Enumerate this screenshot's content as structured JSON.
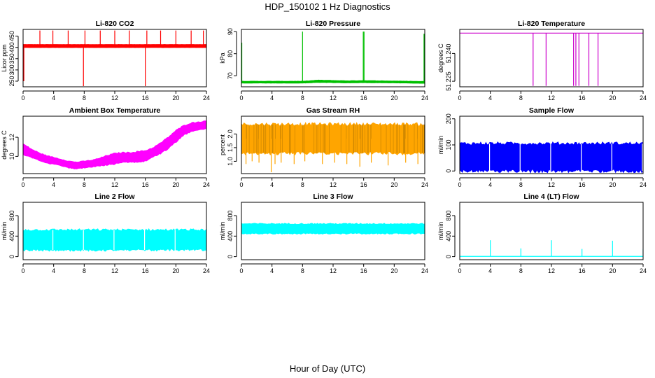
{
  "page": {
    "title": "HDP_150102  1 Hz Diagnostics",
    "xlabel": "Hour of Day (UTC)"
  },
  "chart_data": [
    {
      "type": "line",
      "title": "Li-820 CO2",
      "xlabel": "",
      "ylabel": "Licor ppm",
      "color": "#ff0000",
      "xlim": [
        0,
        24
      ],
      "ylim": [
        225,
        480
      ],
      "x_ticks": [
        0,
        4,
        8,
        12,
        16,
        20,
        24
      ],
      "y_ticks": [
        250,
        300,
        350,
        400,
        450
      ],
      "band": {
        "x": [
          0,
          24
        ],
        "low": [
          400,
          400
        ],
        "high": [
          412,
          412
        ]
      },
      "lines": [
        {
          "x": [
            0,
            24
          ],
          "y": [
            406,
            406
          ]
        }
      ],
      "spikes": [
        {
          "x": 0.1,
          "y": 250
        },
        {
          "x": 2.2,
          "y": 475
        },
        {
          "x": 3.9,
          "y": 475
        },
        {
          "x": 5.9,
          "y": 475
        },
        {
          "x": 7.9,
          "y": 228
        },
        {
          "x": 8.1,
          "y": 475
        },
        {
          "x": 10.1,
          "y": 475
        },
        {
          "x": 12.0,
          "y": 475
        },
        {
          "x": 13.9,
          "y": 475
        },
        {
          "x": 16.0,
          "y": 228
        },
        {
          "x": 16.2,
          "y": 475
        },
        {
          "x": 18.0,
          "y": 475
        },
        {
          "x": 20.0,
          "y": 475
        },
        {
          "x": 22.0,
          "y": 475
        },
        {
          "x": 23.6,
          "y": 475
        }
      ]
    },
    {
      "type": "line",
      "title": "Li-820 Pressure",
      "xlabel": "",
      "ylabel": "kPa",
      "color": "#00c000",
      "xlim": [
        0,
        24
      ],
      "ylim": [
        65,
        91
      ],
      "x_ticks": [
        0,
        4,
        8,
        12,
        16,
        20,
        24
      ],
      "y_ticks": [
        70,
        80,
        90
      ],
      "band": {
        "x": [
          0,
          8,
          10,
          14,
          16,
          20,
          24
        ],
        "low": [
          66.7,
          66.7,
          67.0,
          66.8,
          66.9,
          66.8,
          66.6
        ],
        "high": [
          67.5,
          67.5,
          68.0,
          67.7,
          67.8,
          67.6,
          67.4
        ]
      },
      "lines": [],
      "spikes": [
        {
          "x": 0.05,
          "y": 85
        },
        {
          "x": 8.0,
          "y": 90
        },
        {
          "x": 15.95,
          "y": 90
        },
        {
          "x": 16.05,
          "y": 90
        },
        {
          "x": 23.9,
          "y": 89
        }
      ]
    },
    {
      "type": "line",
      "title": "Li-820 Temperature",
      "xlabel": "",
      "ylabel": "degrees C",
      "color": "#cc00cc",
      "xlim": [
        0,
        24
      ],
      "ylim": [
        51.222,
        51.253
      ],
      "x_ticks": [
        0,
        4,
        8,
        12,
        16,
        20,
        24
      ],
      "y_ticks": [
        51.225,
        51.24
      ],
      "y_tick_labels": [
        "51.225",
        "51.240"
      ],
      "band": null,
      "lines": [
        {
          "x": [
            0,
            24
          ],
          "y": [
            51.251,
            51.251
          ]
        }
      ],
      "spikes": [
        {
          "x": 9.6,
          "y": 51.2225
        },
        {
          "x": 11.3,
          "y": 51.2225
        },
        {
          "x": 14.9,
          "y": 51.2225
        },
        {
          "x": 15.2,
          "y": 51.2225
        },
        {
          "x": 15.6,
          "y": 51.2225
        },
        {
          "x": 16.9,
          "y": 51.2225
        },
        {
          "x": 18.1,
          "y": 51.2225
        }
      ]
    },
    {
      "type": "line",
      "title": "Ambient Box Temperature",
      "xlabel": "",
      "ylabel": "degrees C",
      "color": "#ff00ff",
      "xlim": [
        0,
        24
      ],
      "ylim": [
        8.2,
        14.2
      ],
      "x_ticks": [
        0,
        4,
        8,
        12,
        16,
        20,
        24
      ],
      "y_ticks": [
        10,
        12
      ],
      "band": {
        "x": [
          0,
          1,
          2,
          3,
          4,
          5,
          6,
          7,
          8,
          9,
          10,
          11,
          12,
          13,
          14,
          15,
          16,
          17,
          18,
          19,
          20,
          21,
          22,
          23,
          24
        ],
        "low": [
          10.2,
          9.9,
          9.6,
          9.3,
          9.2,
          9.0,
          8.8,
          8.7,
          8.8,
          8.9,
          9.0,
          9.1,
          9.2,
          9.4,
          9.4,
          9.4,
          9.5,
          9.9,
          10.3,
          10.8,
          11.5,
          12.2,
          12.6,
          12.8,
          12.9
        ],
        "high": [
          11.3,
          10.8,
          10.4,
          10.1,
          9.9,
          9.7,
          9.5,
          9.4,
          9.5,
          9.6,
          9.8,
          10.1,
          10.3,
          10.4,
          10.4,
          10.5,
          10.6,
          10.9,
          11.4,
          12.0,
          12.7,
          13.2,
          13.5,
          13.6,
          13.7
        ]
      },
      "lines": [],
      "spikes": []
    },
    {
      "type": "line",
      "title": "Gas Stream RH",
      "xlabel": "",
      "ylabel": "percent",
      "color": "#ffa500",
      "accent": "#996600",
      "xlim": [
        0,
        24
      ],
      "ylim": [
        0.55,
        2.65
      ],
      "x_ticks": [
        0,
        4,
        8,
        12,
        16,
        20,
        24
      ],
      "y_ticks": [
        1.0,
        1.5,
        2.0
      ],
      "y_tick_labels": [
        "1.0",
        "1.5",
        "2.0"
      ],
      "band": {
        "x": [
          0,
          24
        ],
        "low": [
          1.3,
          1.3
        ],
        "high": [
          2.35,
          2.35
        ]
      },
      "lines": [],
      "spikes": [
        {
          "x": 0.6,
          "y": 0.9
        },
        {
          "x": 1.4,
          "y": 1.0
        },
        {
          "x": 2.3,
          "y": 0.95
        },
        {
          "x": 3.9,
          "y": 0.6
        },
        {
          "x": 4.4,
          "y": 0.9
        },
        {
          "x": 5.2,
          "y": 0.95
        },
        {
          "x": 6.9,
          "y": 0.9
        },
        {
          "x": 8.3,
          "y": 1.0
        },
        {
          "x": 10.6,
          "y": 0.9
        },
        {
          "x": 12.2,
          "y": 0.95
        },
        {
          "x": 13.8,
          "y": 0.9
        },
        {
          "x": 15.5,
          "y": 0.8
        },
        {
          "x": 17.0,
          "y": 0.95
        },
        {
          "x": 19.2,
          "y": 0.85
        },
        {
          "x": 21.5,
          "y": 0.95
        },
        {
          "x": 23.1,
          "y": 0.9
        }
      ]
    },
    {
      "type": "line",
      "title": "Sample Flow",
      "xlabel": "",
      "ylabel": "ml/min",
      "color": "#0000ff",
      "xlim": [
        0,
        24
      ],
      "ylim": [
        -10,
        210
      ],
      "x_ticks": [
        0,
        4,
        8,
        12,
        16,
        20,
        24
      ],
      "y_ticks": [
        0,
        100,
        200
      ],
      "band": {
        "x": [
          0,
          24
        ],
        "low": [
          0,
          0
        ],
        "high": [
          105,
          105
        ]
      },
      "lines": [],
      "gaps": [
        3.9,
        7.9,
        11.9,
        15.9,
        19.9,
        23.9
      ],
      "spikes": []
    },
    {
      "type": "line",
      "title": "Line 2 Flow",
      "xlabel": "",
      "ylabel": "ml/min",
      "color": "#00ffff",
      "xlim": [
        0,
        24
      ],
      "ylim": [
        -60,
        1060
      ],
      "x_ticks": [
        0,
        4,
        8,
        12,
        16,
        20,
        24
      ],
      "y_ticks": [
        0,
        400,
        800
      ],
      "band": {
        "x": [
          0,
          24
        ],
        "low": [
          130,
          130
        ],
        "high": [
          520,
          520
        ]
      },
      "lines": [],
      "gaps": [
        3.9,
        7.9,
        11.9,
        15.9,
        19.9
      ],
      "spikes": []
    },
    {
      "type": "line",
      "title": "Line 3 Flow",
      "xlabel": "",
      "ylabel": "ml/min",
      "color": "#00ffff",
      "xlim": [
        0,
        24
      ],
      "ylim": [
        -60,
        1060
      ],
      "x_ticks": [
        0,
        4,
        8,
        12,
        16,
        20,
        24
      ],
      "y_ticks": [
        0,
        400,
        800
      ],
      "band": {
        "x": [
          0,
          24
        ],
        "low": [
          450,
          450
        ],
        "high": [
          640,
          640
        ]
      },
      "lines": [],
      "spikes": []
    },
    {
      "type": "line",
      "title": "Line 4 (LT) Flow",
      "xlabel": "",
      "ylabel": "ml/min",
      "color": "#00ffff",
      "xlim": [
        0,
        24
      ],
      "ylim": [
        -60,
        1060
      ],
      "x_ticks": [
        0,
        4,
        8,
        12,
        16,
        20,
        24
      ],
      "y_ticks": [
        0,
        400,
        800
      ],
      "band": null,
      "lines": [
        {
          "x": [
            0,
            24
          ],
          "y": [
            5,
            5
          ]
        }
      ],
      "spikes": [
        {
          "x": 4.0,
          "y": 320
        },
        {
          "x": 8.0,
          "y": 160
        },
        {
          "x": 12.0,
          "y": 320
        },
        {
          "x": 16.0,
          "y": 150
        },
        {
          "x": 20.0,
          "y": 310
        },
        {
          "x": 24.0,
          "y": 150
        }
      ]
    }
  ]
}
